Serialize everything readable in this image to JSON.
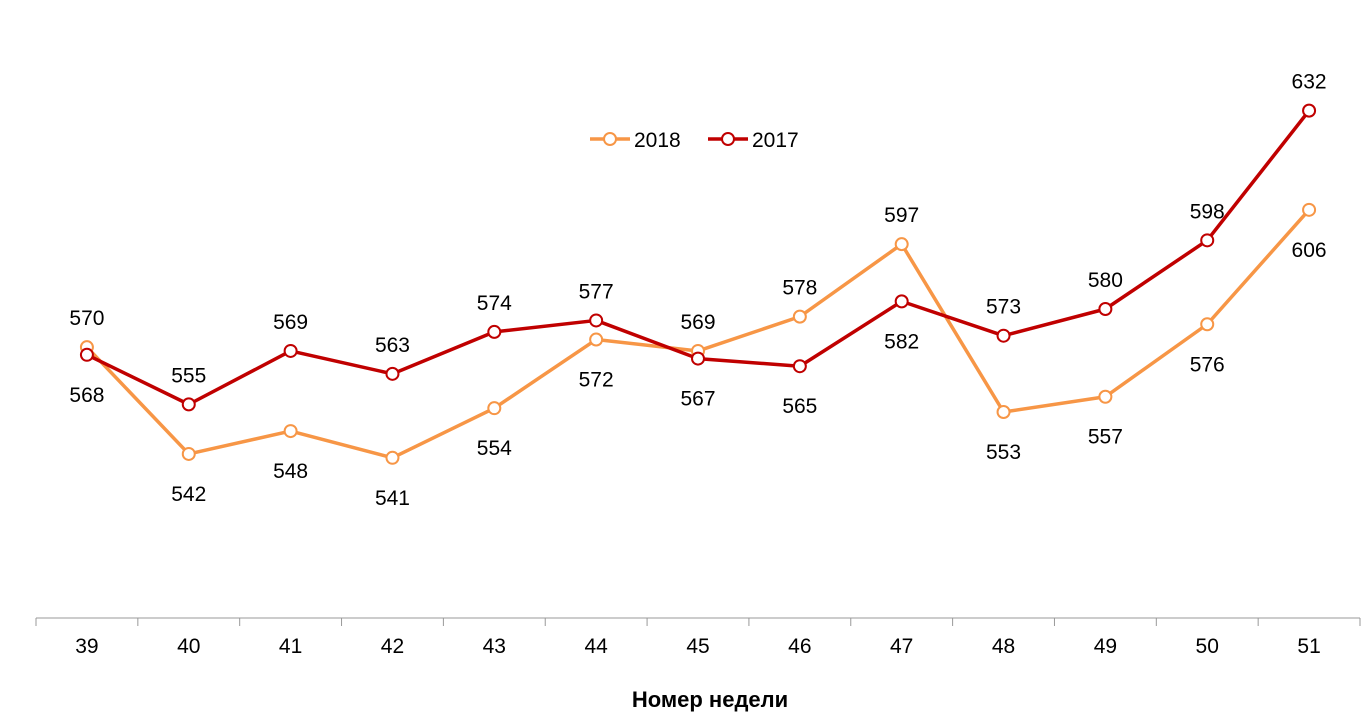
{
  "chart_data": {
    "type": "line",
    "title": "",
    "xlabel": "Номер недели",
    "ylabel": "",
    "categories": [
      "39",
      "40",
      "41",
      "42",
      "43",
      "44",
      "45",
      "46",
      "47",
      "48",
      "49",
      "50",
      "51"
    ],
    "ylim": [
      499,
      661
    ],
    "grid": false,
    "legend_placement": "top-center",
    "series": [
      {
        "name": "2018",
        "color": "#F79646",
        "values": [
          570,
          542,
          548,
          541,
          554,
          572,
          569,
          578,
          597,
          553,
          557,
          576,
          606
        ]
      },
      {
        "name": "2017",
        "color": "#C00000",
        "values": [
          568,
          555,
          569,
          563,
          574,
          577,
          567,
          565,
          582,
          573,
          580,
          598,
          632
        ]
      }
    ]
  }
}
